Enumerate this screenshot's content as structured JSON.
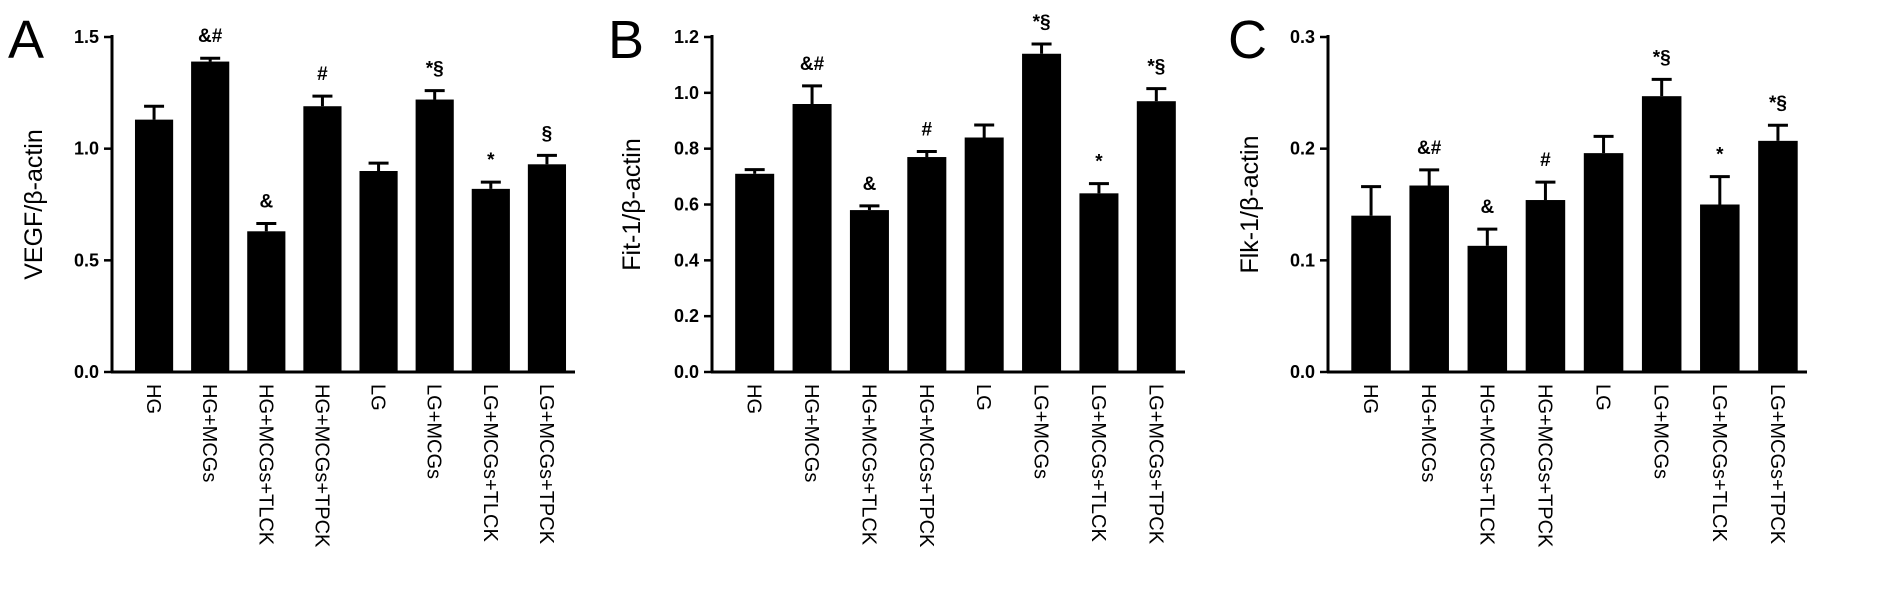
{
  "chart_data": [
    {
      "type": "bar",
      "panel": "A",
      "ylabel": "VEGF/β-actin",
      "ylim": [
        0,
        1.5
      ],
      "yticks": [
        "0.0",
        "0.5",
        "1.0",
        "1.5"
      ],
      "categories": [
        "HG",
        "HG+MCGs",
        "HG+MCGs+TLCK",
        "HG+MCGs+TPCK",
        "LG",
        "LG+MCGs",
        "LG+MCGs+TLCK",
        "LG+MCGs+TPCK"
      ],
      "values": [
        1.13,
        1.39,
        0.63,
        1.19,
        0.9,
        1.22,
        0.82,
        0.93
      ],
      "errors": [
        0.06,
        0.015,
        0.035,
        0.045,
        0.035,
        0.04,
        0.03,
        0.04
      ],
      "annotations": [
        "",
        "&#",
        "&",
        "#",
        "",
        "*§",
        "*",
        "§"
      ],
      "color": "#000000"
    },
    {
      "type": "bar",
      "panel": "B",
      "ylabel": "Fit-1/β-actin",
      "ylim": [
        0,
        1.2
      ],
      "yticks": [
        "0.0",
        "0.2",
        "0.4",
        "0.6",
        "0.8",
        "1.0",
        "1.2"
      ],
      "categories": [
        "HG",
        "HG+MCGs",
        "HG+MCGs+TLCK",
        "HG+MCGs+TPCK",
        "LG",
        "LG+MCGs",
        "LG+MCGs+TLCK",
        "LG+MCGs+TPCK"
      ],
      "values": [
        0.71,
        0.96,
        0.58,
        0.77,
        0.84,
        1.14,
        0.64,
        0.97
      ],
      "errors": [
        0.015,
        0.065,
        0.015,
        0.02,
        0.045,
        0.035,
        0.035,
        0.045
      ],
      "annotations": [
        "",
        "&#",
        "&",
        "#",
        "",
        "*§",
        "*",
        "*§"
      ],
      "color": "#000000"
    },
    {
      "type": "bar",
      "panel": "C",
      "ylabel": "Flk-1/β-actin",
      "ylim": [
        0,
        0.3
      ],
      "yticks": [
        "0.0",
        "0.1",
        "0.2",
        "0.3"
      ],
      "categories": [
        "HG",
        "HG+MCGs",
        "HG+MCGs+TLCK",
        "HG+MCGs+TPCK",
        "LG",
        "LG+MCGs",
        "LG+MCGs+TLCK",
        "LG+MCGs+TPCK"
      ],
      "values": [
        0.14,
        0.167,
        0.113,
        0.154,
        0.196,
        0.247,
        0.15,
        0.207
      ],
      "errors": [
        0.026,
        0.014,
        0.015,
        0.016,
        0.015,
        0.015,
        0.025,
        0.014
      ],
      "annotations": [
        "",
        "&#",
        "&",
        "#",
        "",
        "*§",
        "*",
        "*§"
      ],
      "color": "#000000"
    }
  ]
}
